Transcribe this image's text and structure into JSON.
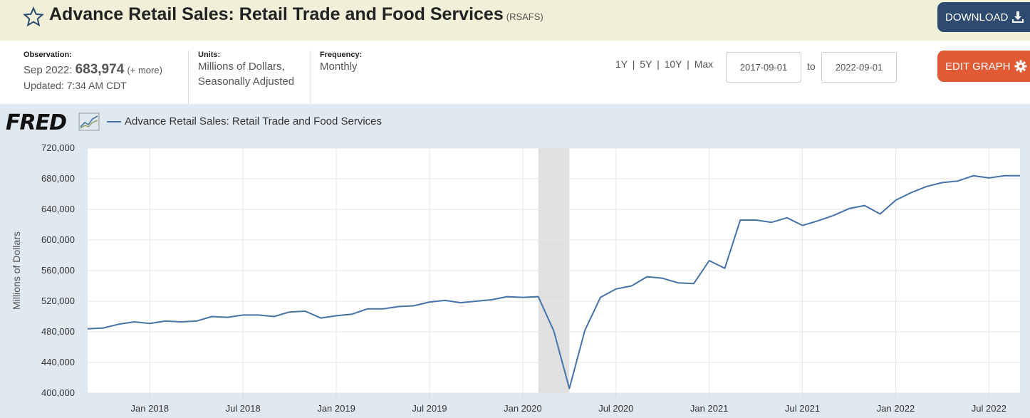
{
  "header": {
    "title": "Advance Retail Sales: Retail Trade and Food Services",
    "series_code": "(RSAFS)",
    "download_label": "DOWNLOAD"
  },
  "meta": {
    "observation_label": "Observation:",
    "observation_date": "Sep 2022:",
    "observation_value": "683,974",
    "observation_more": "(+ more)",
    "updated": "Updated: 7:34 AM CDT",
    "units_label": "Units:",
    "units_line1": "Millions of Dollars,",
    "units_line2": "Seasonally Adjusted",
    "frequency_label": "Frequency:",
    "frequency_value": "Monthly"
  },
  "controls": {
    "range_1y": "1Y",
    "range_5y": "5Y",
    "range_10y": "10Y",
    "range_max": "Max",
    "range_sep": "|",
    "start_date": "2017-09-01",
    "to_label": "to",
    "end_date": "2022-09-01",
    "edit_label": "EDIT GRAPH"
  },
  "brand": {
    "logo_text": "FRED"
  },
  "colors": {
    "series": "#4572a7",
    "download_bg": "#2e4a6e",
    "edit_bg": "#e05a34",
    "title_bg": "#f0f0d8",
    "chart_bg": "#e1e9f0",
    "recession": "#e0e0e0"
  },
  "chart_data": {
    "type": "line",
    "legend": "Advance Retail Sales: Retail Trade and Food Services",
    "ylabel": "Millions of Dollars",
    "ylim": [
      400000,
      720000
    ],
    "yticks": [
      "720,000",
      "680,000",
      "640,000",
      "600,000",
      "560,000",
      "520,000",
      "480,000",
      "440,000",
      "400,000"
    ],
    "ytick_values": [
      720000,
      680000,
      640000,
      600000,
      560000,
      520000,
      480000,
      440000,
      400000
    ],
    "xticks": [
      "Jan 2018",
      "Jul 2018",
      "Jan 2019",
      "Jul 2019",
      "Jan 2020",
      "Jul 2020",
      "Jan 2021",
      "Jul 2021",
      "Jan 2022",
      "Jul 2022"
    ],
    "xtick_dates": [
      "2018-01",
      "2018-07",
      "2019-01",
      "2019-07",
      "2020-01",
      "2020-07",
      "2021-01",
      "2021-07",
      "2022-01",
      "2022-07"
    ],
    "x_start": "2017-09",
    "x_end": "2022-09",
    "recession": [
      "2020-02",
      "2020-04"
    ],
    "grid": true,
    "series": [
      {
        "name": "Advance Retail Sales: Retail Trade and Food Services",
        "x": [
          "2017-09",
          "2017-10",
          "2017-11",
          "2017-12",
          "2018-01",
          "2018-02",
          "2018-03",
          "2018-04",
          "2018-05",
          "2018-06",
          "2018-07",
          "2018-08",
          "2018-09",
          "2018-10",
          "2018-11",
          "2018-12",
          "2019-01",
          "2019-02",
          "2019-03",
          "2019-04",
          "2019-05",
          "2019-06",
          "2019-07",
          "2019-08",
          "2019-09",
          "2019-10",
          "2019-11",
          "2019-12",
          "2020-01",
          "2020-02",
          "2020-03",
          "2020-04",
          "2020-05",
          "2020-06",
          "2020-07",
          "2020-08",
          "2020-09",
          "2020-10",
          "2020-11",
          "2020-12",
          "2021-01",
          "2021-02",
          "2021-03",
          "2021-04",
          "2021-05",
          "2021-06",
          "2021-07",
          "2021-08",
          "2021-09",
          "2021-10",
          "2021-11",
          "2021-12",
          "2022-01",
          "2022-02",
          "2022-03",
          "2022-04",
          "2022-05",
          "2022-06",
          "2022-07",
          "2022-08",
          "2022-09"
        ],
        "values": [
          484000,
          485000,
          490000,
          493000,
          491000,
          494000,
          493000,
          494000,
          500000,
          499000,
          502000,
          502000,
          500000,
          506000,
          507000,
          498000,
          501000,
          503000,
          510000,
          510000,
          513000,
          514000,
          519000,
          521000,
          518000,
          520000,
          522000,
          526000,
          525000,
          526000,
          481000,
          406000,
          482000,
          525000,
          536000,
          540000,
          552000,
          550000,
          544000,
          543000,
          573000,
          563000,
          626000,
          626000,
          623000,
          629000,
          619000,
          625000,
          632000,
          641000,
          645000,
          634000,
          652000,
          662000,
          670000,
          675000,
          677000,
          684000,
          681000,
          684000,
          684000
        ]
      }
    ]
  }
}
